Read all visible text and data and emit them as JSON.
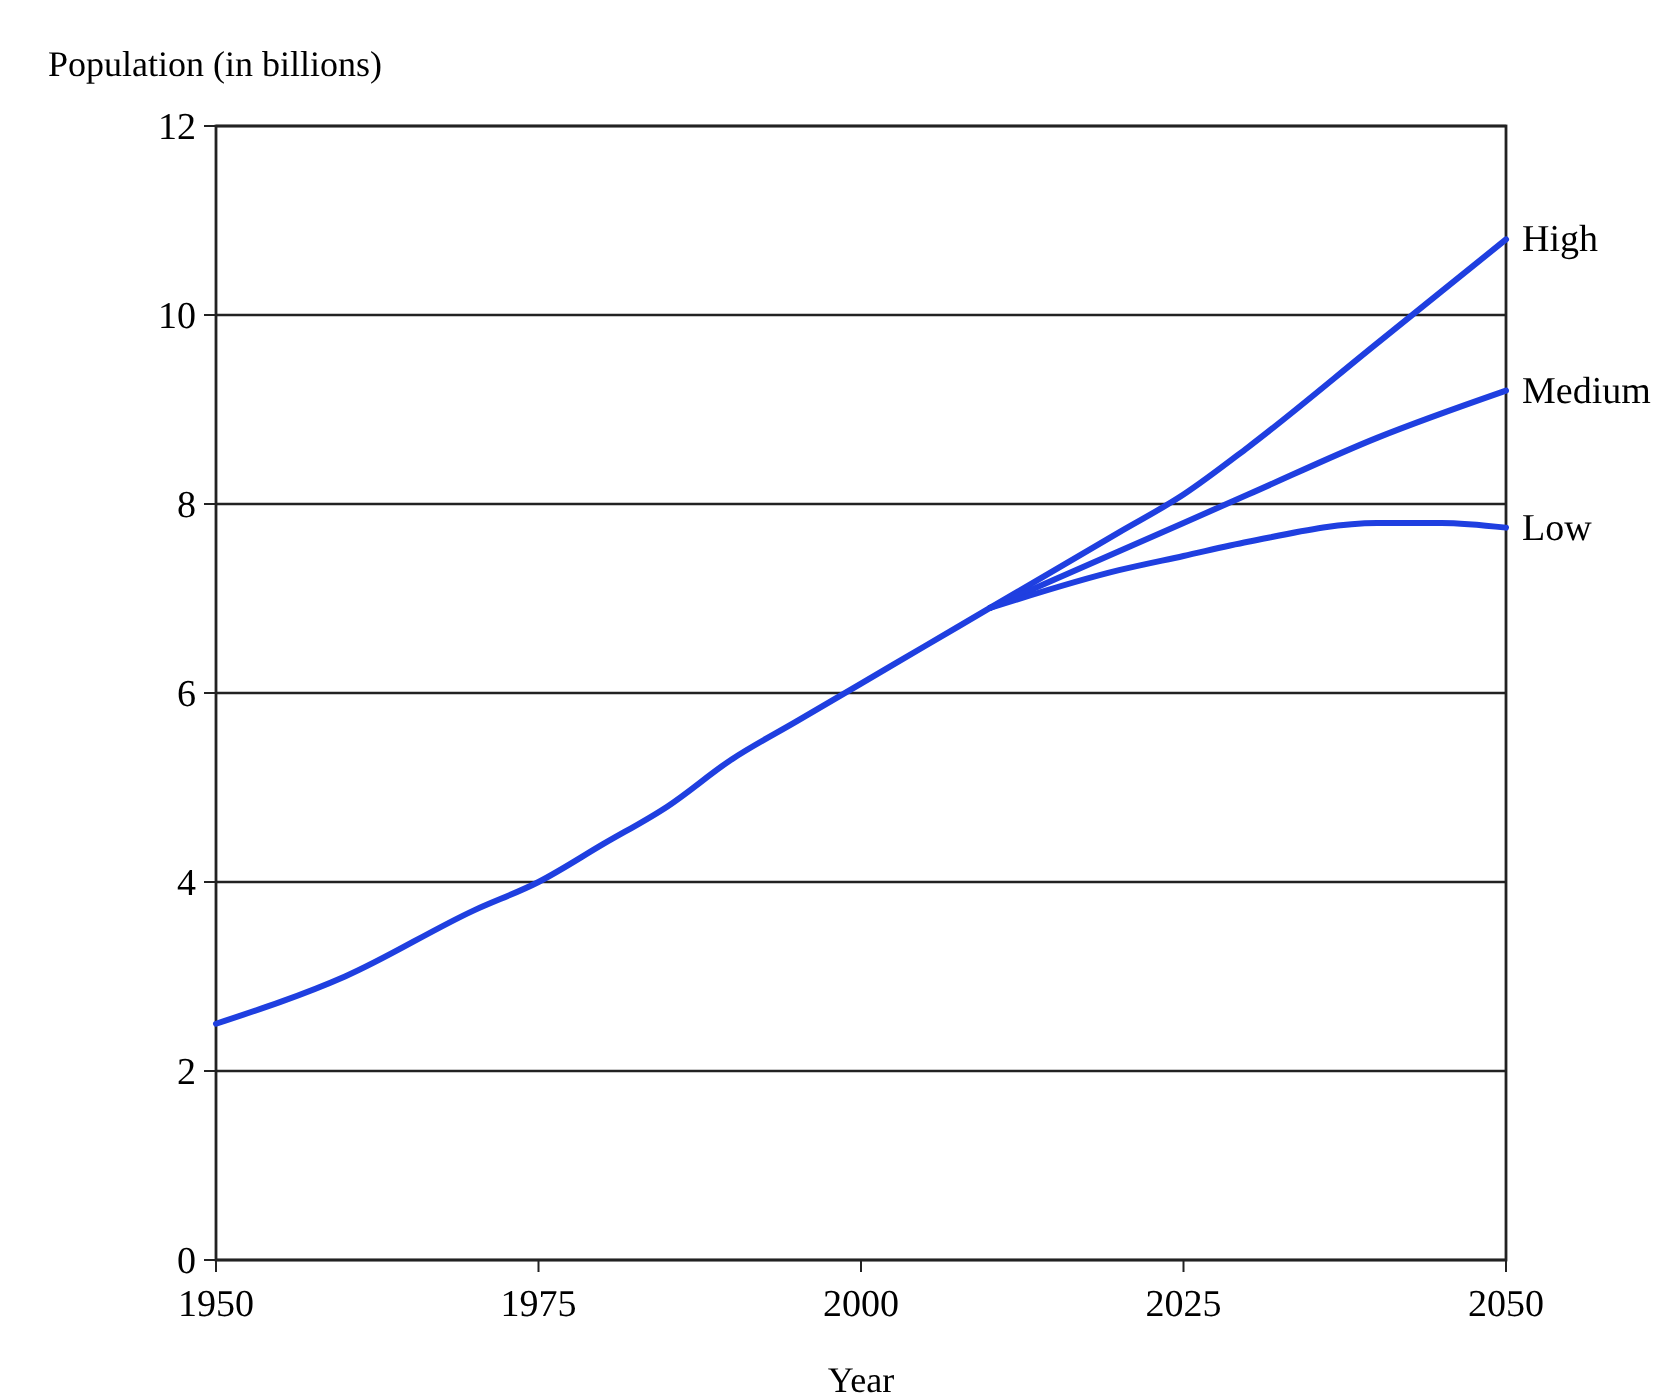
{
  "chart_data": {
    "type": "line",
    "ylabel": "Population (in billions)",
    "xlabel": "Year",
    "xlim": [
      1950,
      2050
    ],
    "xticks": [
      1950,
      1975,
      2000,
      2025,
      2050
    ],
    "ylim": [
      0,
      12
    ],
    "yticks": [
      0,
      2,
      4,
      6,
      8,
      10,
      12
    ],
    "grid": "y",
    "series": [
      {
        "color": "#1f3fe0",
        "x": [
          1950,
          1960,
          1970,
          1975,
          1980,
          1985,
          1990,
          1995,
          2000,
          2005,
          2010
        ],
        "values": [
          2.5,
          3.0,
          3.7,
          4.0,
          4.4,
          4.8,
          5.3,
          5.7,
          6.1,
          6.5,
          6.9
        ]
      },
      {
        "name": "High",
        "color": "#1f3fe0",
        "x": [
          2010,
          2020,
          2025,
          2030,
          2040,
          2050
        ],
        "values": [
          6.9,
          7.7,
          8.1,
          8.6,
          9.7,
          10.8
        ]
      },
      {
        "name": "Medium",
        "color": "#1f3fe0",
        "x": [
          2010,
          2020,
          2025,
          2030,
          2040,
          2050
        ],
        "values": [
          6.9,
          7.5,
          7.8,
          8.1,
          8.7,
          9.2
        ]
      },
      {
        "name": "Low",
        "color": "#1f3fe0",
        "x": [
          2010,
          2020,
          2025,
          2030,
          2040,
          2045,
          2050
        ],
        "values": [
          6.9,
          7.3,
          7.45,
          7.6,
          7.8,
          7.8,
          7.75
        ]
      }
    ]
  }
}
